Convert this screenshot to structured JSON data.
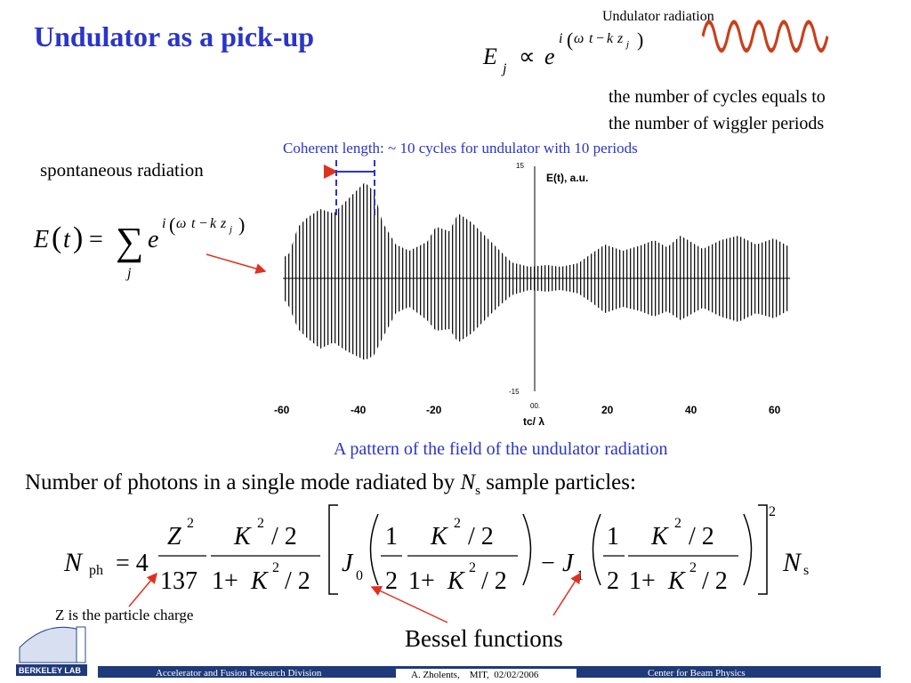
{
  "title": "Undulator as a pick-up",
  "undulator": {
    "label": "Undulator radiation",
    "note": [
      "the number of cycles equals to",
      "the number of wiggler periods"
    ]
  },
  "coherent_length": "Coherent length: ~ 10 cycles for undulator with 10 periods",
  "spontaneous": "spontaneous radiation",
  "eq_single": [
    "E",
    "j",
    "∝",
    "e",
    "i",
    "(",
    "ω",
    "t",
    "−",
    "k",
    "z",
    "j",
    ")"
  ],
  "eq_sum": [
    "E",
    "(",
    "t",
    ")",
    "=",
    "∑",
    "j",
    "e",
    "i",
    "(",
    "ω",
    "t",
    "−",
    "k",
    "z",
    "j",
    ")"
  ],
  "plot": {
    "y_label": "E(t), a.u.",
    "x_label": "tc/ λ",
    "origin": "00.",
    "xticks": [
      "-60",
      "-40",
      "-20",
      "20",
      "40",
      "60"
    ],
    "yticks": [
      "15",
      "-15"
    ]
  },
  "caption": "A pattern of the field of the undulator radiation",
  "photons": [
    "Number of photons in a single mode radiated by ",
    "N",
    "s",
    " sample particles:"
  ],
  "eq_photons": [
    "N",
    "ph",
    "= 4",
    "Z",
    "2",
    "137",
    "K",
    "2",
    "/ 2",
    "1+",
    "K",
    "2",
    "/ 2",
    "J",
    "0",
    "1",
    "2",
    "K",
    "2",
    "/ 2",
    "1+",
    "K",
    "2",
    "/ 2",
    "−",
    "J",
    "1",
    "1",
    "2",
    "K",
    "2",
    "/ 2",
    "1+",
    "K",
    "2",
    "/ 2",
    "2",
    "N",
    "s"
  ],
  "z_note": "Z is the particle charge",
  "bessel": "Bessel functions",
  "footer": {
    "logo": "BERKELEY LAB",
    "division": "Accelerator and Fusion Research Division",
    "author": "A. Zholents,    MIT,  02/02/2006",
    "center": "Center for Beam Physics"
  }
}
